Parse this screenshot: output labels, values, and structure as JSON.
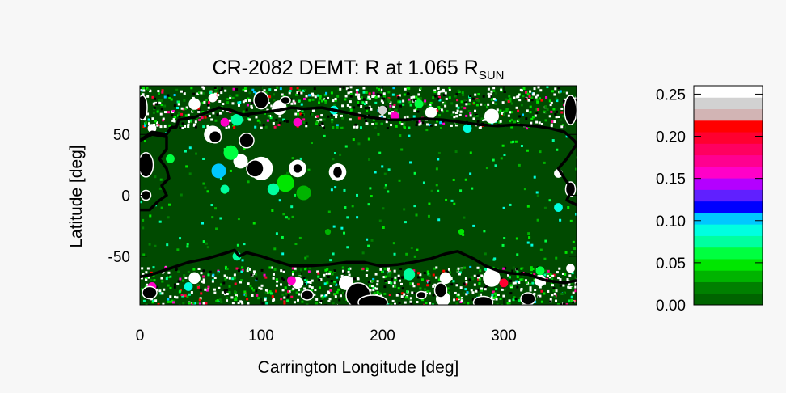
{
  "chart_data": {
    "type": "heatmap",
    "title": {
      "main": "CR-2082 DEMT: R at 1.065 R",
      "subscript": "SUN"
    },
    "xlabel": "Carrington Longitude [deg]",
    "ylabel": "Latitude [deg]",
    "xlim": [
      0,
      360
    ],
    "ylim": [
      -90,
      90
    ],
    "x_ticks": [
      {
        "value": 0,
        "label": "0"
      },
      {
        "value": 100,
        "label": "100"
      },
      {
        "value": 200,
        "label": "200"
      },
      {
        "value": 300,
        "label": "300"
      }
    ],
    "y_ticks": [
      {
        "value": 50,
        "label": "50"
      },
      {
        "value": 0,
        "label": "0"
      },
      {
        "value": -50,
        "label": "-50"
      }
    ],
    "colorbar": {
      "range": [
        0,
        0.26
      ],
      "ticks": [
        {
          "value": 0.0,
          "label": "0.00"
        },
        {
          "value": 0.05,
          "label": "0.05"
        },
        {
          "value": 0.1,
          "label": "0.10"
        },
        {
          "value": 0.15,
          "label": "0.15"
        },
        {
          "value": 0.2,
          "label": "0.20"
        },
        {
          "value": 0.25,
          "label": "0.25"
        }
      ],
      "colors": [
        "#006400",
        "#008000",
        "#00b400",
        "#00e600",
        "#00ff40",
        "#00ffa0",
        "#00ffe0",
        "#00c8ff",
        "#0000ff",
        "#6020ff",
        "#b400ff",
        "#ff00c8",
        "#ff0090",
        "#ff0060",
        "#ff0030",
        "#ff0000",
        "#d2b4b4",
        "#d2d2d2",
        "#ffffff"
      ]
    },
    "map": {
      "background_color": "#004a00",
      "no_data_color": "#000000",
      "contour_color": "#000000",
      "no_data_regions": [
        {
          "lon": 180,
          "lat": -82,
          "rlon": 10,
          "rlat": 10
        },
        {
          "lon": 192,
          "lat": -88,
          "rlon": 12,
          "rlat": 6
        },
        {
          "lon": 283,
          "lat": -88,
          "rlon": 8,
          "rlat": 5
        },
        {
          "lon": 248,
          "lat": -78,
          "rlon": 5,
          "rlat": 6
        },
        {
          "lon": 5,
          "lat": 25,
          "rlon": 6,
          "rlat": 10
        },
        {
          "lon": 95,
          "lat": 22,
          "rlon": 7,
          "rlat": 7
        },
        {
          "lon": 88,
          "lat": 45,
          "rlon": 6,
          "rlat": 6
        },
        {
          "lon": 62,
          "lat": 48,
          "rlon": 5,
          "rlat": 5
        },
        {
          "lon": 130,
          "lat": 22,
          "rlon": 4,
          "rlat": 4
        },
        {
          "lon": 163,
          "lat": 19,
          "rlon": 4,
          "rlat": 5
        },
        {
          "lon": 100,
          "lat": 78,
          "rlon": 6,
          "rlat": 7
        },
        {
          "lon": 120,
          "lat": 78,
          "rlon": 4,
          "rlat": 3
        },
        {
          "lon": 355,
          "lat": 70,
          "rlon": 5,
          "rlat": 12
        },
        {
          "lon": 8,
          "lat": -80,
          "rlon": 6,
          "rlat": 5
        },
        {
          "lon": 2,
          "lat": 72,
          "rlon": 4,
          "rlat": 10
        },
        {
          "lon": 5,
          "lat": 0,
          "rlon": 4,
          "rlat": 4
        },
        {
          "lon": 355,
          "lat": 5,
          "rlon": 4,
          "rlat": 6
        },
        {
          "lon": 138,
          "lat": -82,
          "rlon": 5,
          "rlat": 4
        },
        {
          "lon": 232,
          "lat": -82,
          "rlon": 4,
          "rlat": 3
        },
        {
          "lon": 320,
          "lat": -85,
          "rlon": 6,
          "rlat": 5
        }
      ],
      "north_contour": [
        [
          0,
          45
        ],
        [
          10,
          52
        ],
        [
          22,
          50
        ],
        [
          26,
          56
        ],
        [
          30,
          56
        ],
        [
          32,
          62
        ],
        [
          45,
          64
        ],
        [
          55,
          68
        ],
        [
          65,
          72
        ],
        [
          75,
          70
        ],
        [
          85,
          66
        ],
        [
          100,
          68
        ],
        [
          115,
          70
        ],
        [
          125,
          72
        ],
        [
          135,
          71
        ],
        [
          150,
          72
        ],
        [
          160,
          70
        ],
        [
          175,
          67
        ],
        [
          190,
          64
        ],
        [
          205,
          62
        ],
        [
          220,
          62
        ],
        [
          235,
          63
        ],
        [
          250,
          62
        ],
        [
          265,
          60
        ],
        [
          280,
          58
        ],
        [
          295,
          57
        ],
        [
          310,
          58
        ],
        [
          325,
          57
        ],
        [
          338,
          55
        ],
        [
          350,
          52
        ],
        [
          358,
          45
        ],
        [
          360,
          42
        ]
      ],
      "south_contour": [
        [
          0,
          -67
        ],
        [
          10,
          -65
        ],
        [
          25,
          -60
        ],
        [
          40,
          -55
        ],
        [
          55,
          -52
        ],
        [
          62,
          -50
        ],
        [
          72,
          -47
        ],
        [
          78,
          -45
        ],
        [
          82,
          -50
        ],
        [
          88,
          -47
        ],
        [
          100,
          -50
        ],
        [
          112,
          -54
        ],
        [
          125,
          -58
        ],
        [
          140,
          -58
        ],
        [
          155,
          -57
        ],
        [
          170,
          -55
        ],
        [
          185,
          -55
        ],
        [
          198,
          -58
        ],
        [
          212,
          -57
        ],
        [
          225,
          -55
        ],
        [
          240,
          -52
        ],
        [
          252,
          -48
        ],
        [
          262,
          -46
        ],
        [
          275,
          -52
        ],
        [
          285,
          -58
        ],
        [
          295,
          -62
        ],
        [
          305,
          -64
        ],
        [
          320,
          -65
        ],
        [
          335,
          -70
        ],
        [
          350,
          -72
        ],
        [
          360,
          -70
        ]
      ],
      "west_contour": [
        [
          0,
          45
        ],
        [
          10,
          50
        ],
        [
          22,
          48
        ],
        [
          22,
          38
        ],
        [
          16,
          30
        ],
        [
          22,
          22
        ],
        [
          24,
          14
        ],
        [
          18,
          8
        ],
        [
          22,
          0
        ],
        [
          15,
          -5
        ],
        [
          8,
          -12
        ],
        [
          0,
          -12
        ]
      ],
      "east_contour": [
        [
          360,
          42
        ],
        [
          352,
          30
        ],
        [
          345,
          22
        ],
        [
          350,
          14
        ],
        [
          356,
          5
        ],
        [
          352,
          -4
        ],
        [
          360,
          -8
        ]
      ],
      "features": [
        {
          "lon": 60,
          "lat": 50,
          "r": 6,
          "color": "#ffffff"
        },
        {
          "lon": 83,
          "lat": 28,
          "r": 5,
          "color": "#ffffff"
        },
        {
          "lon": 130,
          "lat": 22,
          "r": 6,
          "color": "#ffffff"
        },
        {
          "lon": 163,
          "lat": 19,
          "r": 6,
          "color": "#ffffff"
        },
        {
          "lon": 100,
          "lat": 22,
          "r": 8,
          "color": "#ffffff"
        },
        {
          "lon": 115,
          "lat": 72,
          "r": 5,
          "color": "#ffffff"
        },
        {
          "lon": 45,
          "lat": 75,
          "r": 4,
          "color": "#ffffff"
        },
        {
          "lon": 290,
          "lat": -68,
          "r": 6,
          "color": "#ffffff"
        },
        {
          "lon": 252,
          "lat": -68,
          "r": 4,
          "color": "#ffffff"
        },
        {
          "lon": 170,
          "lat": -72,
          "r": 5,
          "color": "#ffffff"
        },
        {
          "lon": 45,
          "lat": -68,
          "r": 4,
          "color": "#ffffff"
        },
        {
          "lon": 250,
          "lat": -85,
          "r": 5,
          "color": "#ffffff"
        },
        {
          "lon": 240,
          "lat": 68,
          "r": 4,
          "color": "#ffffff"
        },
        {
          "lon": 290,
          "lat": 65,
          "r": 5,
          "color": "#ffffff"
        },
        {
          "lon": 345,
          "lat": 18,
          "r": 3,
          "color": "#ffffff"
        },
        {
          "lon": 10,
          "lat": 55,
          "r": 3,
          "color": "#ffffff"
        },
        {
          "lon": 130,
          "lat": -72,
          "r": 4,
          "color": "#ffffff"
        },
        {
          "lon": 60,
          "lat": 80,
          "r": 3,
          "color": "#ffffff"
        },
        {
          "lon": 200,
          "lat": 70,
          "r": 3,
          "color": "#d2d2d2"
        },
        {
          "lon": 330,
          "lat": -70,
          "r": 4,
          "color": "#ffffff"
        },
        {
          "lon": 355,
          "lat": -60,
          "r": 3,
          "color": "#ffffff"
        },
        {
          "lon": 75,
          "lat": 35,
          "r": 5,
          "color": "#00ff40"
        },
        {
          "lon": 65,
          "lat": 20,
          "r": 5,
          "color": "#00c8ff"
        },
        {
          "lon": 120,
          "lat": 10,
          "r": 6,
          "color": "#00e600"
        },
        {
          "lon": 110,
          "lat": 5,
          "r": 4,
          "color": "#00ffa0"
        },
        {
          "lon": 135,
          "lat": 2,
          "r": 5,
          "color": "#00b400"
        },
        {
          "lon": 80,
          "lat": 62,
          "r": 4,
          "color": "#00ffa0"
        },
        {
          "lon": 70,
          "lat": 60,
          "r": 3,
          "color": "#ff00c8"
        },
        {
          "lon": 130,
          "lat": 60,
          "r": 3,
          "color": "#ff00c8"
        },
        {
          "lon": 210,
          "lat": 65,
          "r": 3,
          "color": "#ff00c8"
        },
        {
          "lon": 270,
          "lat": 55,
          "r": 3,
          "color": "#00ffe0"
        },
        {
          "lon": 10,
          "lat": -75,
          "r": 3,
          "color": "#ff00c8"
        },
        {
          "lon": 40,
          "lat": -75,
          "r": 3,
          "color": "#00ffe0"
        },
        {
          "lon": 125,
          "lat": -70,
          "r": 3,
          "color": "#ff00c8"
        },
        {
          "lon": 222,
          "lat": -65,
          "r": 4,
          "color": "#00ffa0"
        },
        {
          "lon": 300,
          "lat": -72,
          "r": 3,
          "color": "#ff0030"
        },
        {
          "lon": 330,
          "lat": -62,
          "r": 3,
          "color": "#00ff40"
        },
        {
          "lon": 25,
          "lat": 30,
          "r": 3,
          "color": "#00ff40"
        },
        {
          "lon": 345,
          "lat": -10,
          "r": 3,
          "color": "#00ffe0"
        },
        {
          "lon": 230,
          "lat": 75,
          "r": 3,
          "color": "#00ff40"
        },
        {
          "lon": 160,
          "lat": 70,
          "r": 3,
          "color": "#00ffe0"
        },
        {
          "lon": 265,
          "lat": -30,
          "r": 2,
          "color": "#00e600"
        },
        {
          "lon": 155,
          "lat": -30,
          "r": 2,
          "color": "#00b400"
        },
        {
          "lon": 80,
          "lat": -50,
          "r": 3,
          "color": "#00ffa0"
        },
        {
          "lon": 70,
          "lat": 5,
          "r": 3,
          "color": "#00ffa0"
        }
      ]
    }
  }
}
